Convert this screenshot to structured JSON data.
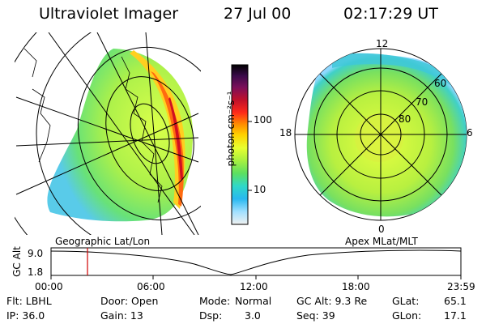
{
  "header": {
    "title": "Ultraviolet Imager",
    "date": "27 Jul 00",
    "time": "02:17:29 UT"
  },
  "colorbar": {
    "unit_label": "photon cm⁻²s⁻¹",
    "ticks": [
      "100",
      "10"
    ],
    "colors": [
      "#000000",
      "#3a0a4a",
      "#7a0e5a",
      "#c0102a",
      "#ff2a1a",
      "#ff8a00",
      "#ffd200",
      "#e8ff30",
      "#a8f040",
      "#5ce060",
      "#30d8c8",
      "#28b8f0",
      "#a0e0ff",
      "#f0f0f0"
    ]
  },
  "left_panel": {
    "label": "Geographic Lat/Lon"
  },
  "right_panel": {
    "label": "Apex MLat/MLT",
    "mlt_labels": {
      "top": "12",
      "left": "18",
      "right": "6",
      "bottom": "0"
    },
    "mlat_labels": [
      "60",
      "70",
      "80"
    ]
  },
  "timeline": {
    "ylabel": "GC Alt",
    "ymax": "9.0",
    "ymin": "1.8",
    "time_ticks": [
      "00:00",
      "06:00",
      "12:00",
      "18:00",
      "23:59"
    ],
    "marker_time": "02:17"
  },
  "info": {
    "filter": "Flt: LBHL",
    "door": "Door: Open",
    "mode_label": "Mode:",
    "mode_value": "Normal",
    "gc_alt": "GC Alt: 9.3 Re",
    "glat_label": "GLat:",
    "glat_value": "65.1",
    "ip": "IP: 36.0",
    "gain": "Gain: 13",
    "dsp_label": "Dsp:",
    "dsp_value": "3.0",
    "seq": "Seq: 39",
    "glon_label": "GLon:",
    "glon_value": "17.1"
  }
}
